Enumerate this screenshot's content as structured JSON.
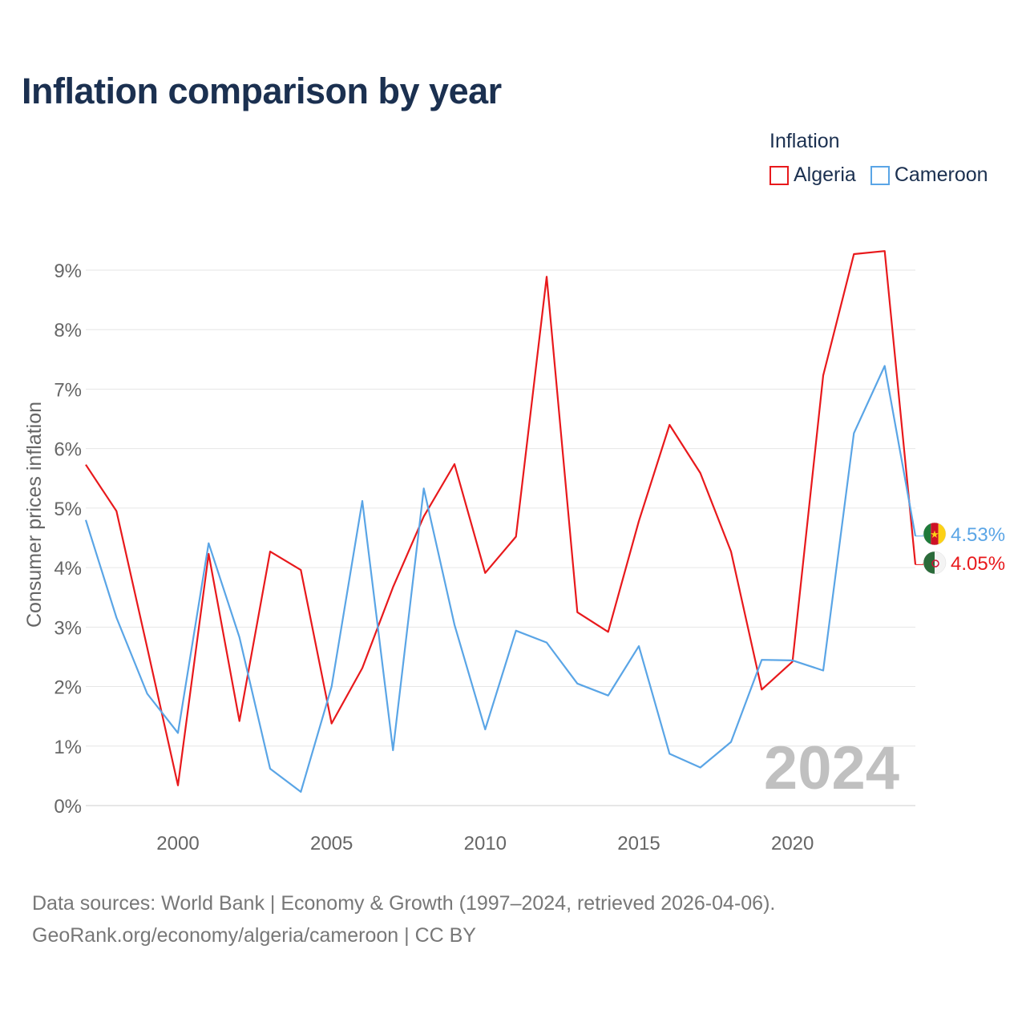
{
  "title": "Inflation comparison by year",
  "legend": {
    "title": "Inflation",
    "items": [
      {
        "name": "Algeria",
        "color": "#e8191c"
      },
      {
        "name": "Cameroon",
        "color": "#5aa5e6"
      }
    ]
  },
  "chart_data": {
    "type": "line",
    "ylabel": "Consumer prices inflation",
    "ylim": [
      0,
      9.5
    ],
    "xlim": [
      1997,
      2024
    ],
    "yticks": [
      "0%",
      "1%",
      "2%",
      "3%",
      "4%",
      "5%",
      "6%",
      "7%",
      "8%",
      "9%"
    ],
    "xticks": [
      "2000",
      "2005",
      "2010",
      "2015",
      "2020"
    ],
    "x": [
      1997,
      1998,
      1999,
      2000,
      2001,
      2002,
      2003,
      2004,
      2005,
      2006,
      2007,
      2008,
      2009,
      2010,
      2011,
      2012,
      2013,
      2014,
      2015,
      2016,
      2017,
      2018,
      2019,
      2020,
      2021,
      2022,
      2023,
      2024
    ],
    "series": [
      {
        "name": "Algeria",
        "color": "#e8191c",
        "values": [
          5.73,
          4.95,
          2.65,
          0.34,
          4.23,
          1.42,
          4.27,
          3.96,
          1.38,
          2.31,
          3.67,
          4.86,
          5.74,
          3.91,
          4.52,
          8.89,
          3.25,
          2.92,
          4.78,
          6.4,
          5.59,
          4.27,
          1.95,
          2.42,
          7.23,
          9.27,
          9.32,
          4.05
        ],
        "end_label": "4.05%"
      },
      {
        "name": "Cameroon",
        "color": "#5aa5e6",
        "values": [
          4.8,
          3.16,
          1.88,
          1.22,
          4.41,
          2.83,
          0.62,
          0.23,
          2.0,
          5.12,
          0.93,
          5.33,
          3.04,
          1.28,
          2.94,
          2.74,
          2.05,
          1.85,
          2.68,
          0.87,
          0.64,
          1.07,
          2.45,
          2.44,
          2.27,
          6.26,
          7.39,
          4.53
        ],
        "end_label": "4.53%"
      }
    ],
    "watermark_year": "2024"
  },
  "footer": {
    "line1": "Data sources: World Bank | Economy & Growth (1997–2024, retrieved 2026-04-06).",
    "line2": "GeoRank.org/economy/algeria/cameroon | CC BY"
  }
}
